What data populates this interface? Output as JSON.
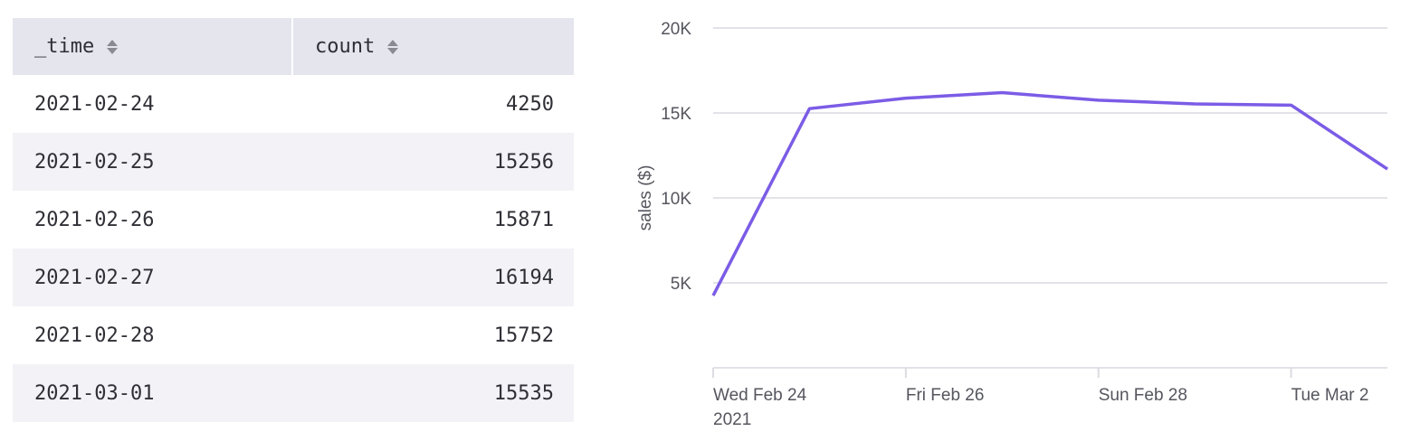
{
  "table": {
    "columns": [
      "_time",
      "count"
    ],
    "rows": [
      [
        "2021-02-24",
        "4250"
      ],
      [
        "2021-02-25",
        "15256"
      ],
      [
        "2021-02-26",
        "15871"
      ],
      [
        "2021-02-27",
        "16194"
      ],
      [
        "2021-02-28",
        "15752"
      ],
      [
        "2021-03-01",
        "15535"
      ]
    ]
  },
  "chart_data": {
    "type": "line",
    "title": "",
    "xlabel": "",
    "ylabel": "sales ($)",
    "x": [
      "2021-02-24",
      "2021-02-25",
      "2021-02-26",
      "2021-02-27",
      "2021-02-28",
      "2021-03-01",
      "2021-03-02",
      "2021-03-03"
    ],
    "series": [
      {
        "values": [
          4250,
          15256,
          15871,
          16194,
          15752,
          15535,
          15460,
          11700
        ],
        "color": "#7b5ce6"
      }
    ],
    "ylim": [
      0,
      20000
    ],
    "xlim": [
      "2021-02-24",
      "2021-03-03"
    ],
    "y_ticks": [
      {
        "value": 5000,
        "label": "5K"
      },
      {
        "value": 10000,
        "label": "10K"
      },
      {
        "value": 15000,
        "label": "15K"
      },
      {
        "value": 20000,
        "label": "20K"
      }
    ],
    "x_ticks": [
      {
        "value": "2021-02-24",
        "label": "Wed Feb 24",
        "sublabel": "2021"
      },
      {
        "value": "2021-02-26",
        "label": "Fri Feb 26"
      },
      {
        "value": "2021-02-28",
        "label": "Sun Feb 28"
      },
      {
        "value": "2021-03-02",
        "label": "Tue Mar 2"
      }
    ],
    "grid": true,
    "legend": "none"
  }
}
